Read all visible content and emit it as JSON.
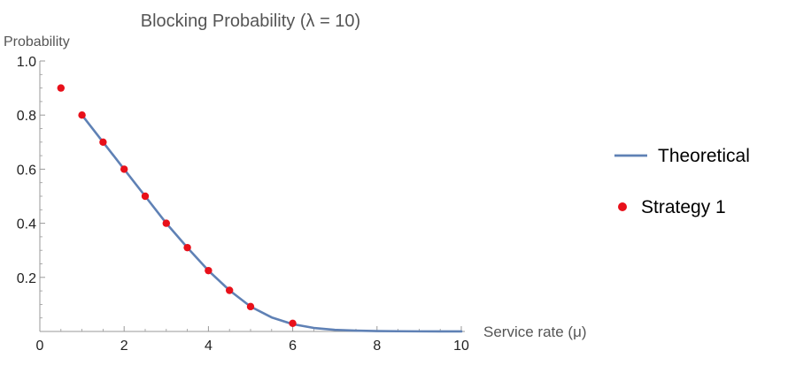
{
  "chart_data": {
    "type": "line",
    "title": "Blocking Probability (λ = 10)",
    "xlabel": "Service rate (μ)",
    "ylabel": "Probability",
    "xlim": [
      0,
      10
    ],
    "ylim": [
      0,
      1.0
    ],
    "x_ticks": [
      "0",
      "2",
      "4",
      "6",
      "8",
      "10"
    ],
    "y_ticks": [
      "0.2",
      "0.4",
      "0.6",
      "0.8",
      "1.0"
    ],
    "grid": false,
    "legend_position": "right",
    "series": [
      {
        "name": "Theoretical",
        "kind": "line",
        "color": "#5f81b5",
        "x": [
          1.0,
          1.5,
          2.0,
          2.5,
          3.0,
          3.5,
          4.0,
          4.5,
          5.0,
          5.5,
          6.0,
          6.5,
          7.0,
          7.5,
          8.0,
          8.5,
          9.0,
          9.5,
          10.0
        ],
        "y": [
          0.8,
          0.7,
          0.6,
          0.5,
          0.4,
          0.31,
          0.225,
          0.152,
          0.092,
          0.052,
          0.027,
          0.013,
          0.006,
          0.003,
          0.0015,
          0.0008,
          0.0004,
          0.0002,
          0.0001
        ]
      },
      {
        "name": "Strategy 1",
        "kind": "scatter",
        "color": "#e8101a",
        "x": [
          0.5,
          1.0,
          1.5,
          2.0,
          2.5,
          3.0,
          3.5,
          4.0,
          4.5,
          5.0,
          6.0
        ],
        "y": [
          0.9,
          0.8,
          0.7,
          0.6,
          0.5,
          0.4,
          0.31,
          0.225,
          0.152,
          0.092,
          0.03
        ]
      }
    ]
  }
}
